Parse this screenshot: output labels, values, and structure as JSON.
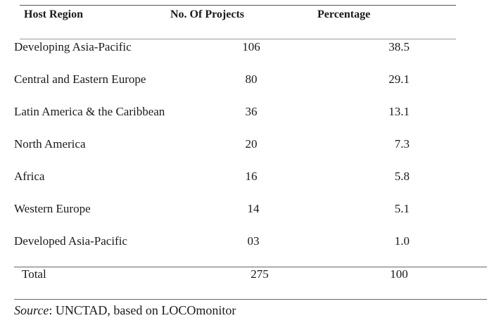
{
  "table": {
    "headers": {
      "region": "Host Region",
      "projects": "No. Of Projects",
      "percentage": "Percentage"
    },
    "rows": [
      {
        "region": "Developing Asia-Pacific",
        "projects": "106",
        "percentage": "38.5"
      },
      {
        "region": "Central and Eastern Europe",
        "projects": "80",
        "percentage": "29.1"
      },
      {
        "region": "Latin America & the Caribbean",
        "projects": "36",
        "percentage": "13.1"
      },
      {
        "region": "North America",
        "projects": "20",
        "percentage": "7.3"
      },
      {
        "region": "Africa",
        "projects": "16",
        "percentage": "5.8"
      },
      {
        "region": "Western Europe",
        "projects": "14",
        "percentage": "5.1"
      },
      {
        "region": "Developed Asia-Pacific",
        "projects": "03",
        "percentage": "1.0"
      }
    ],
    "total": {
      "label": "Total",
      "projects": "275",
      "percentage": "100"
    }
  },
  "source": {
    "label": "Source",
    "text": ": UNCTAD, based on LOCOmonitor"
  }
}
